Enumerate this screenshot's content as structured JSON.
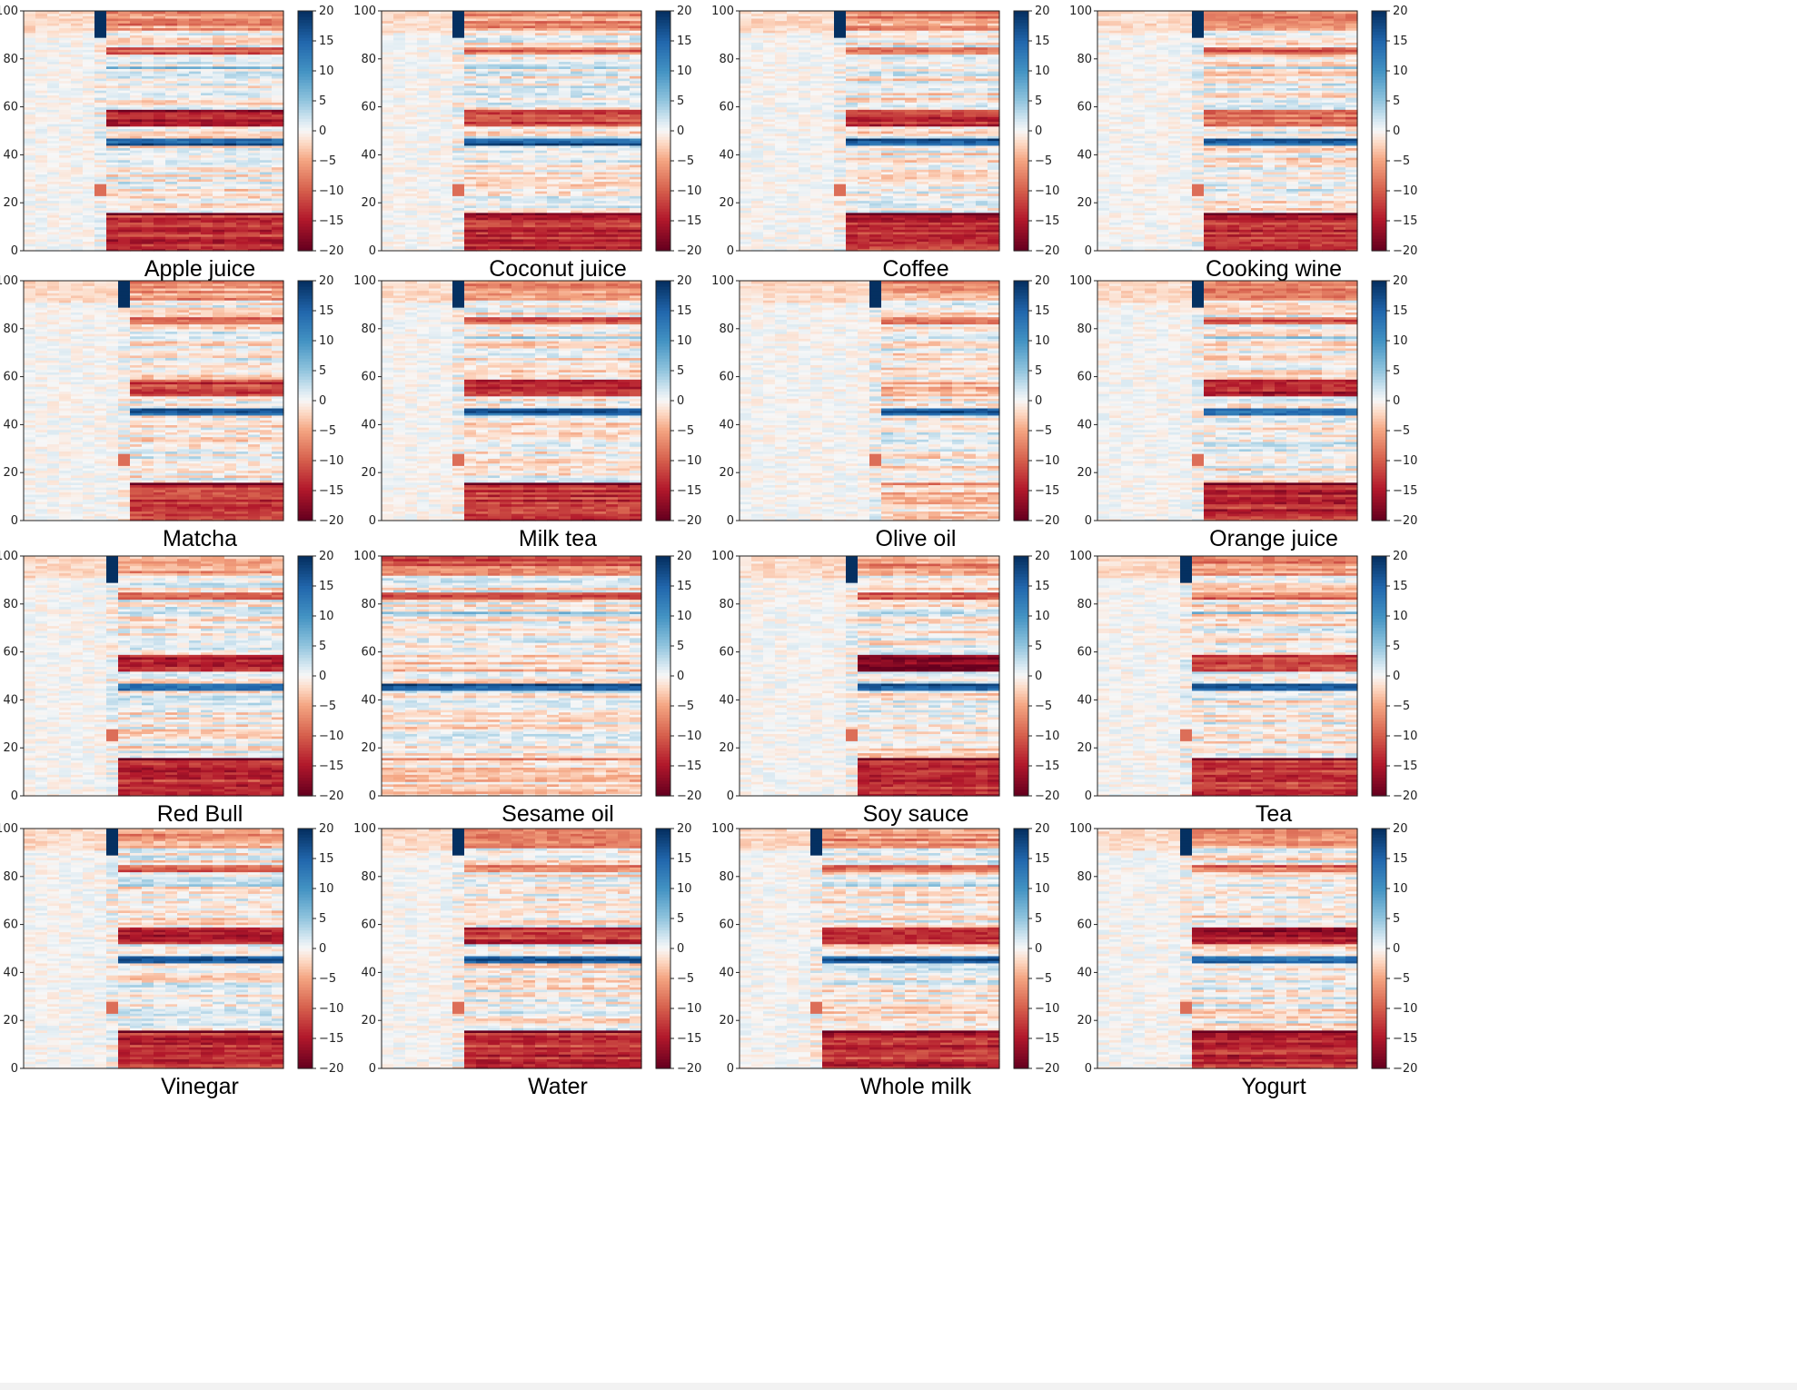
{
  "chart_data": {
    "type": "heatmap",
    "colormap": "RdBu",
    "colors": {
      "min": "#67001f",
      "mid": "#f7f7f7",
      "max": "#053061"
    },
    "y_ticks": [
      0,
      20,
      40,
      60,
      80,
      100
    ],
    "colorbar_ticks": [
      20,
      15,
      10,
      5,
      0,
      -5,
      -10,
      -15,
      -20
    ],
    "colorbar_tick_labels": [
      "20",
      "15",
      "10",
      "5",
      "0",
      "−5",
      "−10",
      "−15",
      "−20"
    ],
    "value_range": [
      -20,
      20
    ],
    "ylim": [
      0,
      100
    ],
    "panels": [
      {
        "title": "Apple juice",
        "onset": 0.26,
        "sat": [
          0.78,
          0.58,
          0.15,
          0.08
        ],
        "blue": [
          0.82,
          0.46
        ],
        "redmid": [
          0.55,
          0.8
        ]
      },
      {
        "title": "Coconut juice",
        "onset": 0.28,
        "sat": [
          0.78,
          0.58,
          0.15,
          0.08
        ],
        "blue": [
          0.88,
          0.44
        ],
        "redmid": [
          0.55,
          0.6
        ]
      },
      {
        "title": "Coffee",
        "onset": 0.35,
        "sat": [
          0.78,
          0.58,
          0.15,
          0.08
        ],
        "blue": [
          0.82,
          0.45
        ],
        "redmid": [
          0.55,
          0.7
        ]
      },
      {
        "title": "Cooking wine",
        "onset": 0.37,
        "sat": [
          0.78,
          0.58,
          0.15,
          0.08
        ],
        "blue": [
          0.82,
          0.44
        ],
        "redmid": [
          0.55,
          0.45
        ]
      },
      {
        "title": "Matcha",
        "onset": 0.35,
        "sat": [
          0.78,
          0.58,
          0.15,
          0.08
        ],
        "blue": [
          0.82,
          0.44
        ],
        "redmid": [
          0.55,
          0.6
        ]
      },
      {
        "title": "Milk tea",
        "onset": 0.25,
        "sat": [
          0.78,
          0.58,
          0.15,
          0.08
        ],
        "blue": [
          0.82,
          0.44
        ],
        "redmid": [
          0.55,
          0.75
        ]
      },
      {
        "title": "Olive oil",
        "onset": 0.5,
        "sat": [
          0.2,
          0.2,
          0.2,
          0.2
        ],
        "blue": [
          0.5,
          0.05
        ],
        "redmid": [
          0.55,
          0.15
        ]
      },
      {
        "title": "Orange juice",
        "onset": 0.35,
        "sat": [
          0.78,
          0.58,
          0.15,
          0.08
        ],
        "blue": [
          0.82,
          0.45
        ],
        "redmid": [
          0.55,
          0.75
        ]
      },
      {
        "title": "Red Bull",
        "onset": 0.3,
        "sat": [
          0.78,
          0.58,
          0.15,
          0.08
        ],
        "blue": [
          0.88,
          0.44
        ],
        "redmid": [
          0.55,
          0.75
        ]
      },
      {
        "title": "Sesame oil",
        "onset": 0.0,
        "sat": [
          0.2,
          0.2,
          0.2,
          0.2
        ],
        "blue": [
          0.5,
          0.05
        ],
        "redmid": [
          0.55,
          0.1
        ]
      },
      {
        "title": "Soy sauce",
        "onset": 0.42,
        "sat": [
          0.78,
          0.58,
          0.15,
          0.08
        ],
        "blue": [
          0.88,
          0.2
        ],
        "redmid": [
          0.55,
          0.95
        ]
      },
      {
        "title": "Tea",
        "onset": 0.3,
        "sat": [
          0.78,
          0.58,
          0.15,
          0.08
        ],
        "blue": [
          0.92,
          0.44
        ],
        "redmid": [
          0.55,
          0.65
        ]
      },
      {
        "title": "Vinegar",
        "onset": 0.3,
        "sat": [
          0.78,
          0.58,
          0.15,
          0.08
        ],
        "blue": [
          0.88,
          0.45
        ],
        "redmid": [
          0.55,
          0.75
        ]
      },
      {
        "title": "Water",
        "onset": 0.25,
        "sat": [
          0.78,
          0.58,
          0.15,
          0.08
        ],
        "blue": [
          0.9,
          0.44
        ],
        "redmid": [
          0.55,
          0.7
        ]
      },
      {
        "title": "Whole milk",
        "onset": 0.26,
        "sat": [
          0.78,
          0.58,
          0.15,
          0.08
        ],
        "blue": [
          0.88,
          0.45
        ],
        "redmid": [
          0.55,
          0.7
        ]
      },
      {
        "title": "Yogurt",
        "onset": 0.3,
        "sat": [
          0.78,
          0.58,
          0.15,
          0.08
        ],
        "blue": [
          0.82,
          0.45
        ],
        "redmid": [
          0.55,
          0.8
        ]
      }
    ]
  }
}
